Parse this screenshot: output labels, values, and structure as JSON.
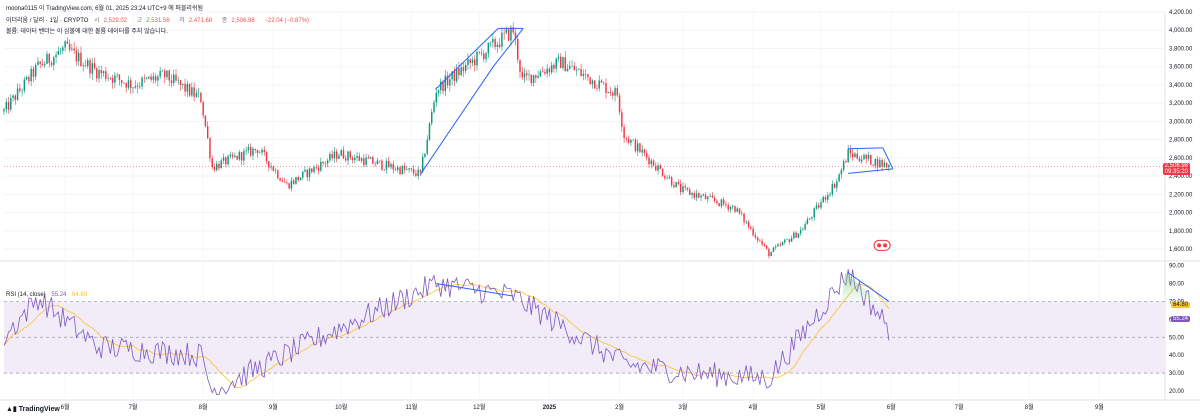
{
  "header": {
    "publisher": "moona0115 이 TradingView.com, 6월 01, 2025 23:24 UTC+9 에 퍼블리쉬됨",
    "symbol": "이더리움 / 달러 · 1일 · CRYPTO",
    "open_label": "시",
    "open": "2,529.02",
    "high_label": "고",
    "high": "2,531.56",
    "low_label": "저",
    "low": "2,471.68",
    "close_label": "종",
    "close": "2,506.98",
    "change": "−22.04 (−0.87%)",
    "notice": "볼륨: 데이터 벤더는 이 심볼에 대한 볼륨 데이터를 주지 않습니다."
  },
  "rsi_header": {
    "label": "RSI (14, close)",
    "rsi": "55.24",
    "ma": "64.80"
  },
  "price_tag": {
    "price": "2,506.98",
    "countdown": "09:35:20"
  },
  "rsi_tags": {
    "ma": "64.80",
    "rsi": "55.24"
  },
  "footer": {
    "brand": "TradingView"
  },
  "colors": {
    "up": "#089981",
    "down": "#f23645",
    "rsi": "#7e57c2",
    "rsi_ma": "#fbc02d",
    "drawing": "#2962ff",
    "band": "#ede7f6"
  },
  "chart_data": [
    {
      "type": "candlestick",
      "title": "이더리움 / 달러 · 1일 · CRYPTO",
      "x_ticks": [
        "6월",
        "7월",
        "8월",
        "9월",
        "10월",
        "11월",
        "12월",
        "2025",
        "2월",
        "3월",
        "4월",
        "5월",
        "6월",
        "7월",
        "8월",
        "9월"
      ],
      "y_ticks": [
        1600,
        1800,
        2000,
        2200,
        2400,
        2600,
        2800,
        3000,
        3200,
        3400,
        3600,
        3800,
        4000,
        4200
      ],
      "ylim": [
        1480,
        4200
      ],
      "last_price": 2506.98,
      "approx_closing_path": [
        {
          "date": "2024-05-05",
          "close": 3110
        },
        {
          "date": "2024-05-20",
          "close": 3600
        },
        {
          "date": "2024-06-01",
          "close": 3800
        },
        {
          "date": "2024-06-15",
          "close": 3550
        },
        {
          "date": "2024-07-01",
          "close": 3400
        },
        {
          "date": "2024-07-15",
          "close": 3500
        },
        {
          "date": "2024-07-31",
          "close": 3250
        },
        {
          "date": "2024-08-05",
          "close": 2500
        },
        {
          "date": "2024-08-25",
          "close": 2700
        },
        {
          "date": "2024-09-07",
          "close": 2300
        },
        {
          "date": "2024-09-30",
          "close": 2650
        },
        {
          "date": "2024-10-15",
          "close": 2550
        },
        {
          "date": "2024-11-05",
          "close": 2420
        },
        {
          "date": "2024-11-12",
          "close": 3350
        },
        {
          "date": "2024-12-16",
          "close": 4000
        },
        {
          "date": "2024-12-20",
          "close": 3450
        },
        {
          "date": "2025-01-06",
          "close": 3650
        },
        {
          "date": "2025-01-31",
          "close": 3300
        },
        {
          "date": "2025-02-03",
          "close": 2850
        },
        {
          "date": "2025-02-28",
          "close": 2250
        },
        {
          "date": "2025-03-24",
          "close": 2050
        },
        {
          "date": "2025-04-08",
          "close": 1550
        },
        {
          "date": "2025-04-22",
          "close": 1800
        },
        {
          "date": "2025-05-08",
          "close": 2350
        },
        {
          "date": "2025-05-13",
          "close": 2650
        },
        {
          "date": "2025-05-31",
          "close": 2510
        }
      ],
      "annotations": [
        {
          "type": "rising-channel",
          "from": "2024-11-05",
          "to": "2024-12-16"
        },
        {
          "type": "flag",
          "from": "2025-05-13",
          "to": "2025-05-31"
        }
      ]
    },
    {
      "type": "line",
      "title": "RSI (14, close)",
      "y_ticks": [
        20,
        30,
        40,
        50,
        60,
        70,
        80,
        90
      ],
      "ylim": [
        15,
        92
      ],
      "bands": {
        "upper": 70,
        "middle": 50,
        "lower": 30
      },
      "series": [
        {
          "name": "RSI",
          "last": 55.24
        },
        {
          "name": "MA",
          "last": 64.8
        }
      ],
      "approx_rsi_path": [
        {
          "date": "2024-05-05",
          "value": 50
        },
        {
          "date": "2024-05-20",
          "value": 72
        },
        {
          "date": "2024-06-15",
          "value": 45
        },
        {
          "date": "2024-07-31",
          "value": 40
        },
        {
          "date": "2024-08-05",
          "value": 20
        },
        {
          "date": "2024-09-30",
          "value": 55
        },
        {
          "date": "2024-11-12",
          "value": 80
        },
        {
          "date": "2024-12-16",
          "value": 73
        },
        {
          "date": "2025-02-03",
          "value": 35
        },
        {
          "date": "2025-03-05",
          "value": 30
        },
        {
          "date": "2025-04-08",
          "value": 27
        },
        {
          "date": "2025-05-13",
          "value": 86
        },
        {
          "date": "2025-05-31",
          "value": 55
        }
      ],
      "annotations": [
        {
          "type": "divergence-line",
          "from": "2024-11-12",
          "to": "2024-12-16"
        },
        {
          "type": "divergence-line",
          "from": "2025-05-13",
          "to": "2025-05-31"
        }
      ]
    }
  ]
}
